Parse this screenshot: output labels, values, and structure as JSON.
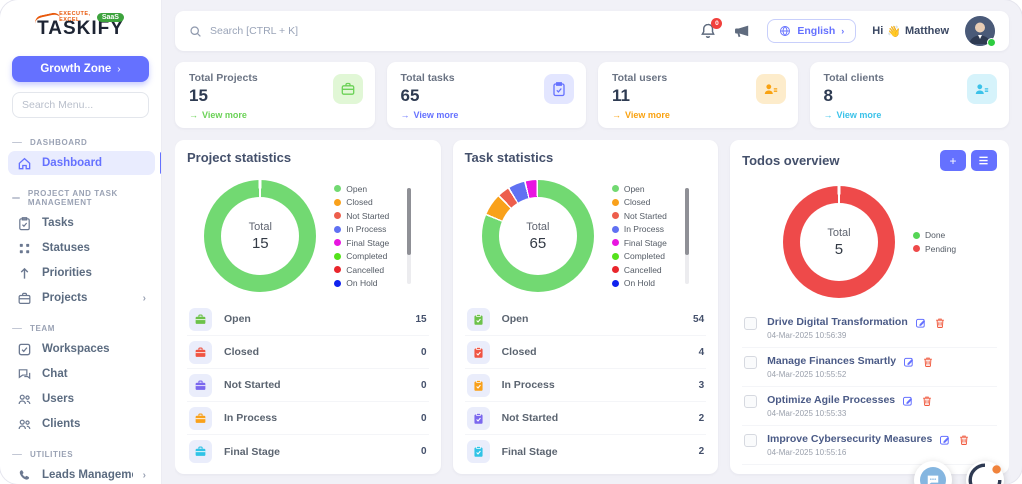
{
  "brand": {
    "name": "TASKIFY",
    "tagline": "EXECUTE, EXCEL",
    "badge": "SaaS"
  },
  "sidebar": {
    "growth_zone_label": "Growth Zone",
    "search_placeholder": "Search Menu...",
    "sections": [
      {
        "label": "DASHBOARD",
        "items": [
          {
            "label": "Dashboard",
            "icon": "home-icon",
            "active": true,
            "chevron": false
          }
        ]
      },
      {
        "label": "PROJECT AND TASK MANAGEMENT",
        "items": [
          {
            "label": "Tasks",
            "icon": "clipboard-icon",
            "active": false,
            "chevron": false
          },
          {
            "label": "Statuses",
            "icon": "grid-icon",
            "active": false,
            "chevron": false
          },
          {
            "label": "Priorities",
            "icon": "arrow-up-icon",
            "active": false,
            "chevron": false
          },
          {
            "label": "Projects",
            "icon": "briefcase-icon",
            "active": false,
            "chevron": true
          }
        ]
      },
      {
        "label": "TEAM",
        "items": [
          {
            "label": "Workspaces",
            "icon": "checkbox-icon",
            "active": false,
            "chevron": false
          },
          {
            "label": "Chat",
            "icon": "chat-icon",
            "active": false,
            "chevron": false
          },
          {
            "label": "Users",
            "icon": "users-icon",
            "active": false,
            "chevron": false
          },
          {
            "label": "Clients",
            "icon": "users-icon",
            "active": false,
            "chevron": false
          }
        ]
      },
      {
        "label": "UTILITIES",
        "items": [
          {
            "label": "Leads Management",
            "icon": "phone-icon",
            "active": false,
            "chevron": true
          }
        ]
      }
    ]
  },
  "topbar": {
    "search_placeholder": "Search [CTRL + K]",
    "notification_badge": "0",
    "language": "English",
    "language_chevron": "›",
    "greeting": "Hi",
    "wave_emoji": "👋",
    "username": "Matthew"
  },
  "stat_cards": [
    {
      "label": "Total Projects",
      "value": "15",
      "link": "View more",
      "accent": "#6bd257",
      "icon": "briefcase-icon",
      "icon_bg": "#e1f7d6",
      "icon_color": "#6bd257"
    },
    {
      "label": "Total tasks",
      "value": "65",
      "link": "View more",
      "accent": "#6571ff",
      "icon": "clipboard-icon",
      "icon_bg": "#e3e6ff",
      "icon_color": "#6571ff"
    },
    {
      "label": "Total users",
      "value": "11",
      "link": "View more",
      "accent": "#f9a211",
      "icon": "user-list-icon",
      "icon_bg": "#fdeccb",
      "icon_color": "#f9a211"
    },
    {
      "label": "Total clients",
      "value": "8",
      "link": "View more",
      "accent": "#3bc2e9",
      "icon": "user-list-icon",
      "icon_bg": "#d6f3fb",
      "icon_color": "#3bc2e9"
    }
  ],
  "chart_data": [
    {
      "type": "pie",
      "title": "Project statistics",
      "center_label": "Total",
      "total": 15,
      "categories": [
        "Open",
        "Closed",
        "Not Started",
        "In Process",
        "Final Stage",
        "Completed",
        "Cancelled",
        "On Hold"
      ],
      "values": [
        15,
        0,
        0,
        0,
        0,
        0,
        0,
        0
      ],
      "colors": [
        "#72d972",
        "#f9a11b",
        "#ed5e4c",
        "#6071f2",
        "#e816e0",
        "#54e21b",
        "#e9262c",
        "#0f22ee"
      ],
      "legend_position": "right"
    },
    {
      "type": "pie",
      "title": "Task statistics",
      "center_label": "Total",
      "total": 65,
      "categories": [
        "Open",
        "Closed",
        "Not Started",
        "In Process",
        "Final Stage",
        "Completed",
        "Cancelled",
        "On Hold"
      ],
      "values": [
        54,
        4,
        2,
        3,
        2,
        0,
        0,
        0
      ],
      "colors": [
        "#72d972",
        "#f9a11b",
        "#ed5e4c",
        "#6071f2",
        "#e816e0",
        "#54e21b",
        "#e9262c",
        "#0f22ee"
      ],
      "legend_position": "right"
    },
    {
      "type": "pie",
      "title": "Todos overview",
      "center_label": "Total",
      "total": 5,
      "categories": [
        "Done",
        "Pending"
      ],
      "values": [
        0,
        5
      ],
      "colors": [
        "#55d555",
        "#ee4a4a"
      ],
      "legend_position": "right"
    }
  ],
  "project_stats": {
    "rows": [
      {
        "label": "Open",
        "value": "15",
        "icon_color": "#6cc24a"
      },
      {
        "label": "Closed",
        "value": "0",
        "icon_color": "#f05442"
      },
      {
        "label": "Not Started",
        "value": "0",
        "icon_color": "#7b68ee"
      },
      {
        "label": "In Process",
        "value": "0",
        "icon_color": "#f9a11b"
      },
      {
        "label": "Final Stage",
        "value": "0",
        "icon_color": "#30c3e6"
      }
    ]
  },
  "task_stats": {
    "rows": [
      {
        "label": "Open",
        "value": "54",
        "icon_color": "#6cc24a"
      },
      {
        "label": "Closed",
        "value": "4",
        "icon_color": "#f05442"
      },
      {
        "label": "In Process",
        "value": "3",
        "icon_color": "#f9a11b"
      },
      {
        "label": "Not Started",
        "value": "2",
        "icon_color": "#7b68ee"
      },
      {
        "label": "Final Stage",
        "value": "2",
        "icon_color": "#30c3e6"
      }
    ]
  },
  "todos": {
    "items": [
      {
        "title": "Drive Digital Transformation",
        "timestamp": "04-Mar-2025 10:56:39"
      },
      {
        "title": "Manage Finances Smartly",
        "timestamp": "04-Mar-2025 10:55:52"
      },
      {
        "title": "Optimize Agile Processes",
        "timestamp": "04-Mar-2025 10:55:33"
      },
      {
        "title": "Improve Cybersecurity Measures",
        "timestamp": "04-Mar-2025 10:55:16"
      }
    ]
  }
}
